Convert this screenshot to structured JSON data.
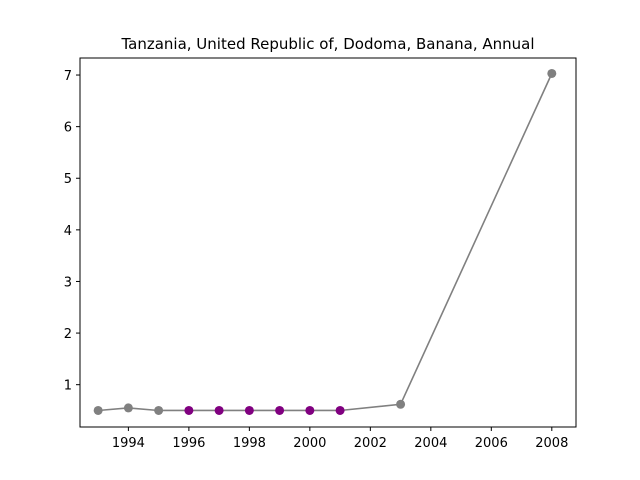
{
  "chart_data": {
    "type": "line",
    "title": "Tanzania, United Republic of, Dodoma, Banana, Annual",
    "xlabel": "",
    "ylabel": "",
    "xlim": [
      1992.4,
      2008.8
    ],
    "ylim": [
      0.18,
      7.33
    ],
    "xticks": [
      1994,
      1996,
      1998,
      2000,
      2002,
      2004,
      2006,
      2008
    ],
    "yticks": [
      1,
      2,
      3,
      4,
      5,
      6,
      7
    ],
    "grid": false,
    "line_color": "#808080",
    "series": [
      {
        "x": [
          1993,
          1994,
          1995,
          1996,
          1997,
          1998,
          1999,
          2000,
          2001,
          2003,
          2008
        ],
        "y": [
          0.5,
          0.55,
          0.5,
          0.5,
          0.5,
          0.5,
          0.5,
          0.5,
          0.5,
          0.62,
          7.03
        ],
        "point_colors": [
          "#808080",
          "#808080",
          "#808080",
          "#800080",
          "#800080",
          "#800080",
          "#800080",
          "#800080",
          "#800080",
          "#808080",
          "#808080"
        ]
      }
    ]
  }
}
